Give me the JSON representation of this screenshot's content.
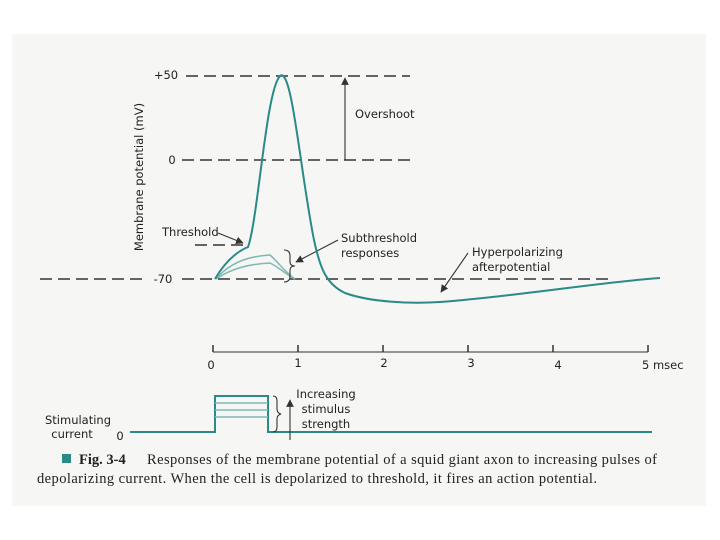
{
  "figure": {
    "y_axis_label": "Membrane potential (mV)",
    "y_ticks": [
      "+50",
      "0",
      "-70"
    ],
    "x_ticks": [
      "0",
      "1",
      "2",
      "3",
      "4",
      "5 msec"
    ],
    "annotations": {
      "overshoot": "Overshoot",
      "threshold": "Threshold",
      "subthreshold": [
        "Subthreshold",
        "responses"
      ],
      "afterpotential": [
        "Hyperpolarizing",
        "afterpotential"
      ],
      "stimulus_strength": [
        "Increasing",
        "stimulus",
        "strength"
      ]
    },
    "stimulus_label": [
      "Stimulating",
      "current"
    ],
    "stimulus_zero": "0"
  },
  "caption": {
    "label": "Fig. 3-4",
    "text": [
      "Responses of the membrane potential of a squid giant axon to increasing pulses of",
      "depolarizing current. When the cell is depolarized to threshold, it fires an action potential."
    ]
  }
}
